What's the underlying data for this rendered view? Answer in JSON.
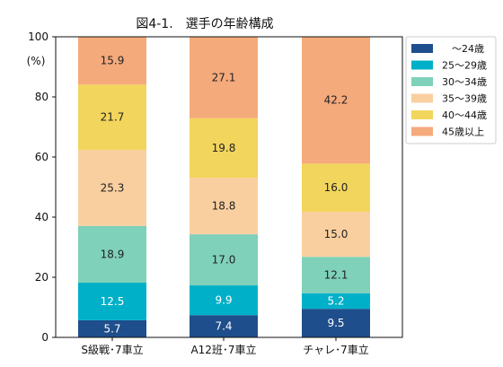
{
  "chart_data": {
    "type": "bar",
    "stacked": true,
    "title": "図4-1.　選手の年齢構成",
    "ylabel": "(%)",
    "ylim": [
      0,
      100
    ],
    "yticks": [
      0,
      20,
      40,
      60,
      80,
      100
    ],
    "grid": false,
    "legend_position": "right",
    "categories": [
      "S級戦･7車立",
      "A12班･7車立",
      "チャレ･7車立"
    ],
    "series": [
      {
        "name": "　～24歳",
        "color": "#1F4E8C",
        "label_color": "#ffffff",
        "values": [
          5.7,
          7.4,
          9.5
        ]
      },
      {
        "name": "25～29歳",
        "color": "#00B0C8",
        "label_color": "#ffffff",
        "values": [
          12.5,
          9.9,
          5.2
        ]
      },
      {
        "name": "30～34歳",
        "color": "#7FD1B9",
        "label_color": "#222222",
        "values": [
          18.9,
          17.0,
          12.1
        ]
      },
      {
        "name": "35～39歳",
        "color": "#FACFA0",
        "label_color": "#222222",
        "values": [
          25.3,
          18.8,
          15.0
        ]
      },
      {
        "name": "40～44歳",
        "color": "#F2D55C",
        "label_color": "#222222",
        "values": [
          21.7,
          19.8,
          16.0
        ]
      },
      {
        "name": "45歳以上",
        "color": "#F5AA7C",
        "label_color": "#222222",
        "values": [
          15.9,
          27.1,
          42.2
        ]
      }
    ]
  }
}
